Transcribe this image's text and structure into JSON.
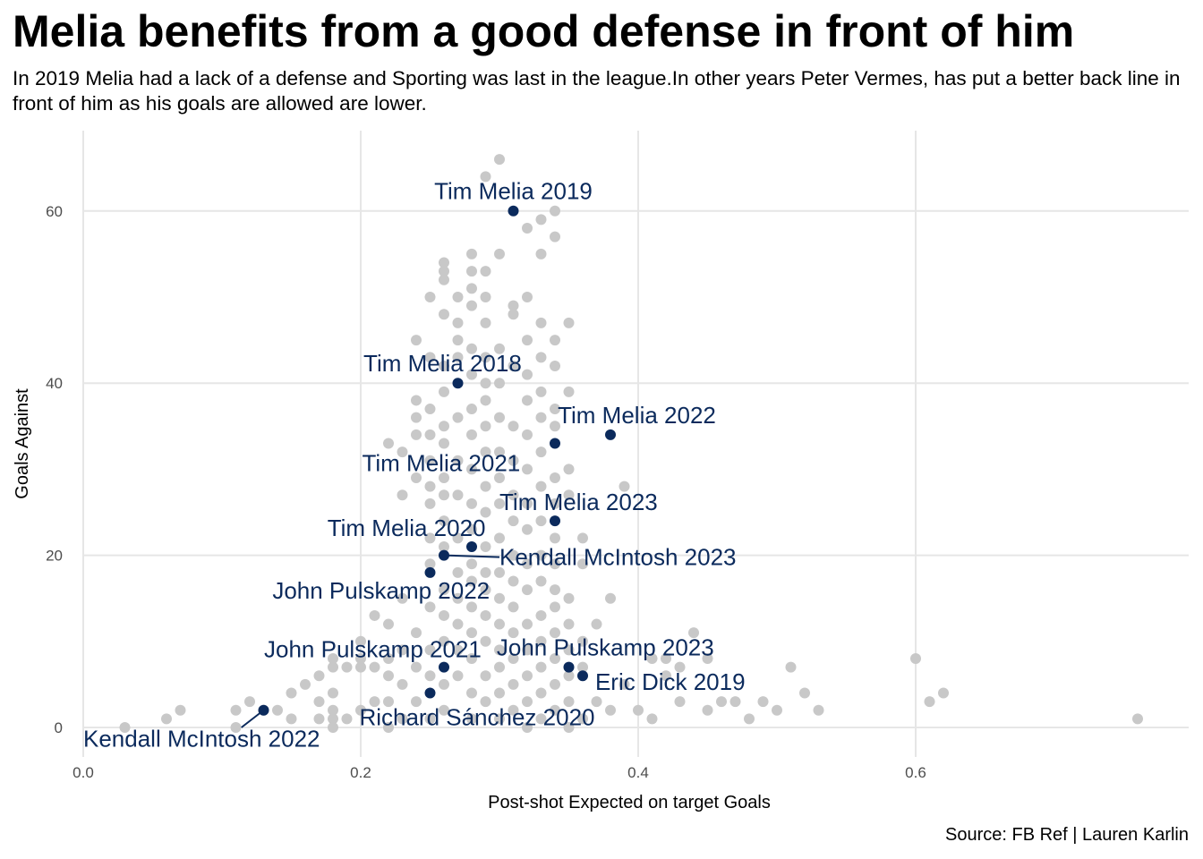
{
  "chart_data": {
    "type": "scatter",
    "title": "Melia benefits from a good defense in front of him",
    "subtitle": "In 2019 Melia had a lack of a defense and Sporting was last in the league.In other years Peter Vermes, has put a better back line in front of him as his goals are allowed are lower.",
    "caption": "Source: FB Ref | Lauren Karlin",
    "xlabel": "Post-shot Expected on target Goals",
    "ylabel": "Goals Against",
    "xlim": [
      0.0,
      0.8
    ],
    "ylim": [
      -3,
      69
    ],
    "x_ticks": [
      0.0,
      0.2,
      0.4,
      0.6
    ],
    "x_tick_labels": [
      "0.0",
      "0.2",
      "0.4",
      "0.6"
    ],
    "y_ticks": [
      0,
      20,
      40,
      60
    ],
    "y_tick_labels": [
      "0",
      "20",
      "40",
      "60"
    ],
    "grid": true,
    "colors": {
      "background_points": "#c8c8c8",
      "highlight": "#0b2a5c",
      "grid": "#e6e6e6"
    },
    "background_points": [
      [
        0.03,
        0
      ],
      [
        0.06,
        1
      ],
      [
        0.07,
        2
      ],
      [
        0.11,
        2
      ],
      [
        0.11,
        0
      ],
      [
        0.12,
        3
      ],
      [
        0.13,
        2
      ],
      [
        0.14,
        2
      ],
      [
        0.15,
        1
      ],
      [
        0.15,
        4
      ],
      [
        0.16,
        5
      ],
      [
        0.17,
        1
      ],
      [
        0.17,
        3
      ],
      [
        0.17,
        6
      ],
      [
        0.18,
        0
      ],
      [
        0.18,
        1
      ],
      [
        0.18,
        2
      ],
      [
        0.18,
        4
      ],
      [
        0.18,
        7
      ],
      [
        0.18,
        8
      ],
      [
        0.19,
        1
      ],
      [
        0.19,
        7
      ],
      [
        0.2,
        2
      ],
      [
        0.2,
        7
      ],
      [
        0.2,
        8
      ],
      [
        0.2,
        10
      ],
      [
        0.21,
        3
      ],
      [
        0.21,
        7
      ],
      [
        0.21,
        13
      ],
      [
        0.22,
        0
      ],
      [
        0.22,
        3
      ],
      [
        0.22,
        6
      ],
      [
        0.22,
        8
      ],
      [
        0.22,
        12
      ],
      [
        0.22,
        33
      ],
      [
        0.23,
        1
      ],
      [
        0.23,
        5
      ],
      [
        0.23,
        9
      ],
      [
        0.23,
        15
      ],
      [
        0.23,
        27
      ],
      [
        0.23,
        32
      ],
      [
        0.24,
        3
      ],
      [
        0.24,
        7
      ],
      [
        0.24,
        11
      ],
      [
        0.24,
        29
      ],
      [
        0.24,
        34
      ],
      [
        0.24,
        36
      ],
      [
        0.24,
        38
      ],
      [
        0.24,
        45
      ],
      [
        0.25,
        1
      ],
      [
        0.25,
        6
      ],
      [
        0.25,
        9
      ],
      [
        0.25,
        14
      ],
      [
        0.25,
        19
      ],
      [
        0.25,
        22
      ],
      [
        0.25,
        26
      ],
      [
        0.25,
        28
      ],
      [
        0.25,
        31
      ],
      [
        0.25,
        34
      ],
      [
        0.25,
        37
      ],
      [
        0.25,
        43
      ],
      [
        0.25,
        50
      ],
      [
        0.26,
        2
      ],
      [
        0.26,
        5
      ],
      [
        0.26,
        10
      ],
      [
        0.26,
        13
      ],
      [
        0.26,
        16
      ],
      [
        0.26,
        21
      ],
      [
        0.26,
        24
      ],
      [
        0.26,
        27
      ],
      [
        0.26,
        29
      ],
      [
        0.26,
        33
      ],
      [
        0.26,
        35
      ],
      [
        0.26,
        39
      ],
      [
        0.26,
        42
      ],
      [
        0.26,
        48
      ],
      [
        0.26,
        52
      ],
      [
        0.26,
        53
      ],
      [
        0.26,
        54
      ],
      [
        0.27,
        6
      ],
      [
        0.27,
        9
      ],
      [
        0.27,
        12
      ],
      [
        0.27,
        15
      ],
      [
        0.27,
        18
      ],
      [
        0.27,
        22
      ],
      [
        0.27,
        27
      ],
      [
        0.27,
        31
      ],
      [
        0.27,
        36
      ],
      [
        0.27,
        43
      ],
      [
        0.27,
        45
      ],
      [
        0.27,
        47
      ],
      [
        0.27,
        50
      ],
      [
        0.28,
        1
      ],
      [
        0.28,
        4
      ],
      [
        0.28,
        8
      ],
      [
        0.28,
        11
      ],
      [
        0.28,
        14
      ],
      [
        0.28,
        17
      ],
      [
        0.28,
        19
      ],
      [
        0.28,
        23
      ],
      [
        0.28,
        26
      ],
      [
        0.28,
        30
      ],
      [
        0.28,
        34
      ],
      [
        0.28,
        37
      ],
      [
        0.28,
        41
      ],
      [
        0.28,
        44
      ],
      [
        0.28,
        49
      ],
      [
        0.28,
        51
      ],
      [
        0.28,
        53
      ],
      [
        0.28,
        55
      ],
      [
        0.29,
        3
      ],
      [
        0.29,
        6
      ],
      [
        0.29,
        10
      ],
      [
        0.29,
        13
      ],
      [
        0.29,
        16
      ],
      [
        0.29,
        18
      ],
      [
        0.29,
        21
      ],
      [
        0.29,
        25
      ],
      [
        0.29,
        28
      ],
      [
        0.29,
        32
      ],
      [
        0.29,
        35
      ],
      [
        0.29,
        38
      ],
      [
        0.29,
        40
      ],
      [
        0.29,
        43
      ],
      [
        0.29,
        47
      ],
      [
        0.29,
        50
      ],
      [
        0.29,
        53
      ],
      [
        0.29,
        64
      ],
      [
        0.3,
        1
      ],
      [
        0.3,
        4
      ],
      [
        0.3,
        7
      ],
      [
        0.3,
        9
      ],
      [
        0.3,
        12
      ],
      [
        0.3,
        15
      ],
      [
        0.3,
        18
      ],
      [
        0.3,
        22
      ],
      [
        0.3,
        26
      ],
      [
        0.3,
        29
      ],
      [
        0.3,
        32
      ],
      [
        0.3,
        36
      ],
      [
        0.3,
        40
      ],
      [
        0.3,
        44
      ],
      [
        0.3,
        55
      ],
      [
        0.3,
        66
      ],
      [
        0.31,
        2
      ],
      [
        0.31,
        5
      ],
      [
        0.31,
        8
      ],
      [
        0.31,
        11
      ],
      [
        0.31,
        14
      ],
      [
        0.31,
        17
      ],
      [
        0.31,
        20
      ],
      [
        0.31,
        24
      ],
      [
        0.31,
        27
      ],
      [
        0.31,
        31
      ],
      [
        0.31,
        35
      ],
      [
        0.31,
        42
      ],
      [
        0.31,
        48
      ],
      [
        0.31,
        49
      ],
      [
        0.32,
        0
      ],
      [
        0.32,
        3
      ],
      [
        0.32,
        6
      ],
      [
        0.32,
        9
      ],
      [
        0.32,
        12
      ],
      [
        0.32,
        16
      ],
      [
        0.32,
        19
      ],
      [
        0.32,
        23
      ],
      [
        0.32,
        26
      ],
      [
        0.32,
        30
      ],
      [
        0.32,
        34
      ],
      [
        0.32,
        38
      ],
      [
        0.32,
        41
      ],
      [
        0.32,
        45
      ],
      [
        0.32,
        50
      ],
      [
        0.32,
        58
      ],
      [
        0.33,
        1
      ],
      [
        0.33,
        4
      ],
      [
        0.33,
        7
      ],
      [
        0.33,
        10
      ],
      [
        0.33,
        13
      ],
      [
        0.33,
        17
      ],
      [
        0.33,
        20
      ],
      [
        0.33,
        24
      ],
      [
        0.33,
        28
      ],
      [
        0.33,
        32
      ],
      [
        0.33,
        36
      ],
      [
        0.33,
        39
      ],
      [
        0.33,
        43
      ],
      [
        0.33,
        47
      ],
      [
        0.33,
        55
      ],
      [
        0.33,
        59
      ],
      [
        0.34,
        2
      ],
      [
        0.34,
        5
      ],
      [
        0.34,
        8
      ],
      [
        0.34,
        11
      ],
      [
        0.34,
        14
      ],
      [
        0.34,
        16
      ],
      [
        0.34,
        19
      ],
      [
        0.34,
        22
      ],
      [
        0.34,
        26
      ],
      [
        0.34,
        29
      ],
      [
        0.34,
        35
      ],
      [
        0.34,
        37
      ],
      [
        0.34,
        42
      ],
      [
        0.34,
        45
      ],
      [
        0.34,
        57
      ],
      [
        0.34,
        60
      ],
      [
        0.35,
        0
      ],
      [
        0.35,
        3
      ],
      [
        0.35,
        6
      ],
      [
        0.35,
        9
      ],
      [
        0.35,
        12
      ],
      [
        0.35,
        15
      ],
      [
        0.35,
        27
      ],
      [
        0.35,
        30
      ],
      [
        0.35,
        39
      ],
      [
        0.35,
        47
      ],
      [
        0.36,
        1
      ],
      [
        0.36,
        7
      ],
      [
        0.36,
        10
      ],
      [
        0.36,
        19
      ],
      [
        0.36,
        22
      ],
      [
        0.37,
        3
      ],
      [
        0.37,
        12
      ],
      [
        0.38,
        2
      ],
      [
        0.38,
        15
      ],
      [
        0.39,
        28
      ],
      [
        0.39,
        5
      ],
      [
        0.4,
        2
      ],
      [
        0.41,
        1
      ],
      [
        0.41,
        8
      ],
      [
        0.42,
        8
      ],
      [
        0.42,
        6
      ],
      [
        0.43,
        3
      ],
      [
        0.43,
        7
      ],
      [
        0.44,
        11
      ],
      [
        0.45,
        2
      ],
      [
        0.45,
        8
      ],
      [
        0.46,
        3
      ],
      [
        0.47,
        3
      ],
      [
        0.48,
        1
      ],
      [
        0.49,
        3
      ],
      [
        0.5,
        2
      ],
      [
        0.51,
        7
      ],
      [
        0.52,
        4
      ],
      [
        0.53,
        2
      ],
      [
        0.6,
        8
      ],
      [
        0.61,
        3
      ],
      [
        0.62,
        4
      ],
      [
        0.76,
        1
      ]
    ],
    "highlighted": [
      {
        "label": "Tim Melia 2019",
        "x": 0.31,
        "y": 60,
        "lx": 0.31,
        "ly": 62.3,
        "anchor": "middle",
        "leader": false
      },
      {
        "label": "Tim Melia 2018",
        "x": 0.27,
        "y": 40,
        "lx": 0.259,
        "ly": 42.3,
        "anchor": "middle",
        "leader": false
      },
      {
        "label": "Tim Melia 2022",
        "x": 0.38,
        "y": 34,
        "lx": 0.342,
        "ly": 36.3,
        "anchor": "start",
        "leader": false
      },
      {
        "label": "Tim Melia 2021",
        "x": 0.34,
        "y": 33,
        "lx": 0.315,
        "ly": 30.7,
        "anchor": "end",
        "leader": false
      },
      {
        "label": "Tim Melia 2023",
        "x": 0.34,
        "y": 24,
        "lx": 0.3,
        "ly": 26.2,
        "anchor": "start",
        "leader": false
      },
      {
        "label": "Tim Melia 2020",
        "x": 0.28,
        "y": 21,
        "lx": 0.29,
        "ly": 23.2,
        "anchor": "end",
        "leader": false
      },
      {
        "label": "Kendall McIntosh 2023",
        "x": 0.26,
        "y": 20,
        "lx": 0.3,
        "ly": 19.8,
        "anchor": "start",
        "leader": true
      },
      {
        "label": "John Pulskamp 2022",
        "x": 0.25,
        "y": 18,
        "lx": 0.293,
        "ly": 15.9,
        "anchor": "end",
        "leader": false
      },
      {
        "label": "John Pulskamp 2021",
        "x": 0.26,
        "y": 7,
        "lx": 0.287,
        "ly": 9.1,
        "anchor": "end",
        "leader": false
      },
      {
        "label": "John Pulskamp 2023",
        "x": 0.35,
        "y": 7,
        "lx": 0.298,
        "ly": 9.3,
        "anchor": "start",
        "leader": false
      },
      {
        "label": "Eric Dick 2019",
        "x": 0.36,
        "y": 6,
        "lx": 0.369,
        "ly": 5.3,
        "anchor": "start",
        "leader": false
      },
      {
        "label": "Richard Sánchez 2020",
        "x": 0.25,
        "y": 4,
        "lx": 0.199,
        "ly": 1.2,
        "anchor": "start",
        "leader": false
      },
      {
        "label": "Kendall McIntosh 2022",
        "x": 0.13,
        "y": 2,
        "lx": 0.0,
        "ly": -1.3,
        "anchor": "start",
        "leader": true,
        "leader_to": [
          0.114,
          0.0
        ]
      }
    ]
  }
}
